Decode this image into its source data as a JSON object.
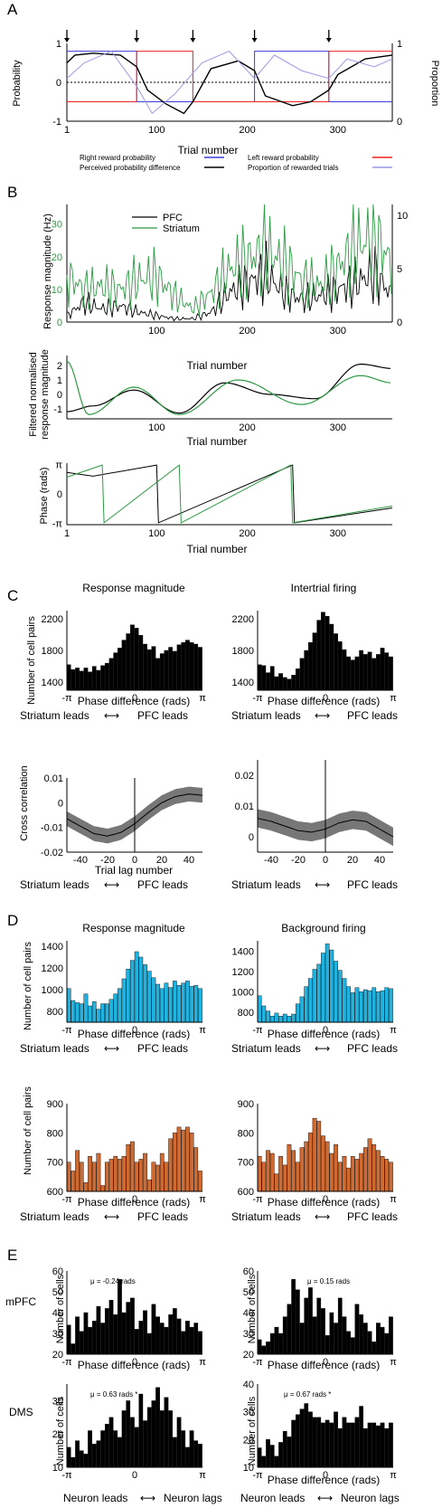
{
  "panels": {
    "A": {
      "letter": "A",
      "ylabel_left": "Probability",
      "ylabel_right": "Proportion",
      "xlabel": "Trial number",
      "xticks": [
        "1",
        "100",
        "200",
        "300"
      ],
      "yticks_left": [
        "-1",
        "0",
        "1"
      ],
      "yticks_right": [
        "0",
        "1"
      ],
      "legend": [
        {
          "label": "Right reward probability",
          "color": "#3b3bd6"
        },
        {
          "label": "Left reward probability",
          "color": "#ee2020"
        },
        {
          "label": "Perceived probability difference",
          "color": "#000000"
        },
        {
          "label": "Proportion of rewarded trials",
          "color": "#9a9ae6"
        }
      ],
      "arrow_trials": [
        1,
        78,
        140,
        208,
        290
      ]
    },
    "B": {
      "letter": "B",
      "top": {
        "ylabel": "Response magnitude (Hz)",
        "xlabel": "Trial number",
        "yticks_left": [
          "0",
          "10",
          "20",
          "30"
        ],
        "yticks_right": [
          "0",
          "5",
          "10"
        ],
        "xticks": [
          "100",
          "200",
          "300"
        ],
        "legend": [
          {
            "label": "PFC",
            "color": "#000000"
          },
          {
            "label": "Striatum",
            "color": "#2e9a44"
          }
        ]
      },
      "mid": {
        "ylabel1": "Filtered normalised",
        "ylabel2": "response magnitude",
        "xlabel": "Trial number",
        "yticks": [
          "-1",
          "0",
          "1",
          "2"
        ],
        "xticks": [
          "100",
          "200",
          "300"
        ]
      },
      "bottom": {
        "ylabel": "Phase (rads)",
        "xlabel": "Trial number",
        "yticks": [
          "-π",
          "0",
          "π"
        ],
        "xticks": [
          "1",
          "100",
          "200",
          "300"
        ]
      }
    },
    "C": {
      "letter": "C",
      "hist_left_title": "Response magnitude",
      "hist_right_title": "Intertrial firing",
      "hist_ylabel": "Number of cell pairs",
      "hist_xlabel": "Phase difference (rads)",
      "hist_yticks": [
        "1400",
        "1800",
        "2200"
      ],
      "phase_ticks": [
        "-π",
        "0",
        "π"
      ],
      "lead_left": "Striatum leads",
      "lead_right": "PFC leads",
      "arrow": "⟷",
      "xc_ylabel": "Cross correlation",
      "xc_xlabel": "Trial lag number",
      "xc_left_yticks": [
        "-0.02",
        "-0.01",
        "0",
        "0.01"
      ],
      "xc_right_yticks": [
        "0",
        "0.01",
        "0.02"
      ],
      "xc_xticks": [
        "-40",
        "-20",
        "0",
        "20",
        "40"
      ]
    },
    "D": {
      "letter": "D",
      "left_title": "Response magnitude",
      "right_title": "Background firing",
      "ylabel": "Number of cell pairs",
      "xlabel": "Phase difference (rads)",
      "top_left_yticks": [
        "800",
        "1000",
        "1200",
        "1400"
      ],
      "top_right_yticks": [
        "800",
        "1000",
        "1200",
        "1400"
      ],
      "bot_yticks": [
        "600",
        "700",
        "800",
        "900"
      ],
      "phase_ticks": [
        "-π",
        "0",
        "π"
      ],
      "lead_left": "Striatum leads",
      "lead_right": "PFC leads",
      "arrow": "⟷",
      "blue": "#21b3e0",
      "orange": "#cf6a32"
    },
    "E": {
      "letter": "E",
      "row1_label": "mPFC",
      "row2_label": "DMS",
      "ylabel": "Number of cells",
      "xlabel": "Phase difference (rads)",
      "phase_ticks": [
        "-π",
        "0",
        "π"
      ],
      "mpfc_left_yticks": [
        "20",
        "30",
        "40",
        "50",
        "60"
      ],
      "mpfc_right_yticks": [
        "20",
        "30",
        "40",
        "50",
        "60"
      ],
      "dms_left_yticks": [
        "10",
        "20",
        "30"
      ],
      "dms_right_yticks": [
        "10",
        "20",
        "30",
        "40"
      ],
      "annotations": [
        "μ = -0.24 rads",
        "μ = 0.15 rads",
        "μ = 0.63 rads *",
        "μ = 0.67 rads *"
      ],
      "lead_left": "Neuron leads",
      "lead_right": "Neuron lags",
      "arrow": "⟷"
    }
  },
  "chart_data": [
    {
      "type": "line",
      "panel": "A",
      "xlabel": "Trial number",
      "x_range": [
        1,
        360
      ],
      "series": [
        {
          "name": "Right reward probability",
          "x": [
            1,
            78,
            78,
            208,
            208,
            290,
            290,
            360
          ],
          "values": [
            0.9,
            0.9,
            0.25,
            0.25,
            0.9,
            0.9,
            0.25,
            0.25
          ]
        },
        {
          "name": "Left reward probability",
          "x": [
            1,
            78,
            78,
            140,
            140,
            290,
            290,
            360
          ],
          "values": [
            0.25,
            0.25,
            0.9,
            0.9,
            0.25,
            0.25,
            0.9,
            0.9
          ]
        },
        {
          "name": "Perceived probability difference",
          "x": [
            1,
            10,
            30,
            60,
            78,
            90,
            110,
            130,
            140,
            160,
            190,
            208,
            220,
            250,
            270,
            290,
            300,
            330,
            360
          ],
          "values": [
            0.5,
            0.7,
            0.75,
            0.7,
            0.4,
            -0.2,
            -0.55,
            -0.8,
            -0.5,
            0.35,
            0.55,
            0.3,
            -0.35,
            -0.6,
            -0.5,
            -0.2,
            0.2,
            0.6,
            0.7
          ]
        },
        {
          "name": "Proportion of rewarded trials",
          "x": [
            1,
            20,
            50,
            78,
            95,
            120,
            150,
            180,
            208,
            230,
            260,
            290,
            310,
            340,
            360
          ],
          "values": [
            0.55,
            0.75,
            0.9,
            0.45,
            0.1,
            0.35,
            0.75,
            0.9,
            0.55,
            0.85,
            0.65,
            0.55,
            0.8,
            0.7,
            0.8
          ]
        }
      ]
    },
    {
      "type": "line",
      "panel": "B-top",
      "ylabel": "Response magnitude (Hz)",
      "xlabel": "Trial number",
      "ylim": [
        0,
        36
      ],
      "series": [
        {
          "name": "PFC",
          "x": [
            1,
            20,
            40,
            60,
            80,
            100,
            120,
            140,
            160,
            180,
            200,
            220,
            240,
            260,
            280,
            300,
            320,
            340,
            360
          ],
          "values": [
            2,
            6,
            4,
            5,
            3,
            2,
            1,
            1,
            3,
            9,
            12,
            15,
            9,
            7,
            8,
            10,
            12,
            15,
            8
          ]
        },
        {
          "name": "Striatum",
          "x": [
            1,
            20,
            40,
            60,
            80,
            100,
            120,
            140,
            160,
            180,
            200,
            220,
            240,
            260,
            280,
            300,
            320,
            340,
            360
          ],
          "values": [
            14,
            10,
            11,
            10,
            13,
            14,
            8,
            4,
            9,
            16,
            19,
            22,
            18,
            13,
            11,
            17,
            23,
            26,
            18
          ]
        }
      ]
    },
    {
      "type": "line",
      "panel": "B-mid",
      "ylabel": "Filtered normalised response magnitude",
      "xlabel": "Trial number",
      "ylim": [
        -1.7,
        2.7
      ],
      "series": [
        {
          "name": "PFC",
          "x": [
            1,
            30,
            75,
            125,
            175,
            225,
            275,
            325,
            360
          ],
          "values": [
            -1.2,
            -0.8,
            0.3,
            -1.3,
            0.8,
            0.0,
            -0.3,
            2.1,
            1.8
          ]
        },
        {
          "name": "Striatum",
          "x": [
            1,
            25,
            75,
            125,
            190,
            260,
            325,
            360
          ],
          "values": [
            2.3,
            -1.4,
            0.5,
            -1.4,
            1.0,
            -0.7,
            1.3,
            0.8
          ]
        }
      ]
    },
    {
      "type": "line",
      "panel": "B-bottom",
      "ylabel": "Phase (rads)",
      "xlabel": "Trial number",
      "ylim": [
        -3.3,
        3.3
      ],
      "series": [
        {
          "name": "PFC",
          "x": [
            1,
            30,
            100,
            102,
            250,
            252,
            360
          ],
          "values": [
            2.3,
            1.9,
            3.1,
            -3.1,
            3.1,
            -3.1,
            -1.5
          ]
        },
        {
          "name": "Striatum",
          "x": [
            1,
            40,
            42,
            125,
            127,
            248,
            250,
            360
          ],
          "values": [
            1.8,
            3.1,
            -3.1,
            3.1,
            -3.1,
            3.1,
            -3.1,
            -1.3
          ]
        }
      ]
    },
    {
      "type": "bar",
      "panel": "C-left",
      "title": "Response magnitude",
      "ylabel": "Number of cell pairs",
      "xlabel": "Phase difference (rads)",
      "ylim": [
        1300,
        2300
      ],
      "values": [
        1620,
        1560,
        1580,
        1540,
        1580,
        1530,
        1600,
        1550,
        1610,
        1640,
        1700,
        1770,
        1830,
        1930,
        2010,
        2120,
        2080,
        1990,
        1880,
        1810,
        1850,
        1700,
        1760,
        1800,
        1840,
        1790,
        1870,
        1900,
        1930,
        1900,
        1880,
        1840
      ]
    },
    {
      "type": "bar",
      "panel": "C-right",
      "title": "Intertrial firing",
      "ylabel": "Number of cell pairs",
      "xlabel": "Phase difference (rads)",
      "ylim": [
        1300,
        2300
      ],
      "values": [
        1620,
        1610,
        1520,
        1600,
        1470,
        1510,
        1460,
        1440,
        1490,
        1570,
        1700,
        1800,
        1900,
        2020,
        2180,
        2280,
        2230,
        2130,
        2010,
        1910,
        1810,
        1720,
        1680,
        1720,
        1800,
        1750,
        1780,
        1700,
        1750,
        1830,
        1770,
        1720
      ]
    },
    {
      "type": "line",
      "panel": "C-xcorr-left",
      "ylabel": "Cross correlation",
      "xlabel": "Trial lag number",
      "ylim": [
        -0.02,
        0.01
      ],
      "x": [
        -50,
        -40,
        -30,
        -20,
        -10,
        0,
        10,
        20,
        30,
        40,
        50
      ],
      "series": [
        {
          "values": [
            -0.0065,
            -0.0095,
            -0.0125,
            -0.0135,
            -0.012,
            -0.0085,
            -0.004,
            0.0,
            0.0025,
            0.0035,
            0.003
          ]
        }
      ]
    },
    {
      "type": "line",
      "panel": "C-xcorr-right",
      "ylabel": "Cross correlation",
      "xlabel": "Trial lag number",
      "ylim": [
        -0.005,
        0.025
      ],
      "x": [
        -50,
        -40,
        -30,
        -20,
        -10,
        0,
        10,
        20,
        30,
        40,
        50
      ],
      "series": [
        {
          "values": [
            0.006,
            0.005,
            0.0035,
            0.002,
            0.0015,
            0.0025,
            0.0045,
            0.0055,
            0.005,
            0.0025,
            0.0
          ]
        }
      ]
    },
    {
      "type": "bar",
      "panel": "D-top-left",
      "title": "Response magnitude",
      "ylabel": "Number of cell pairs",
      "ylim": [
        700,
        1450
      ],
      "values": [
        1010,
        900,
        880,
        870,
        960,
        850,
        890,
        820,
        870,
        870,
        910,
        960,
        1010,
        1100,
        1190,
        1270,
        1350,
        1300,
        1230,
        1170,
        1110,
        1050,
        1010,
        1060,
        1020,
        1080,
        1040,
        1060,
        1080,
        1030,
        1040,
        1010
      ]
    },
    {
      "type": "bar",
      "panel": "D-top-right",
      "title": "Background firing",
      "ylabel": "Number of cell pairs",
      "ylim": [
        700,
        1500
      ],
      "values": [
        960,
        860,
        810,
        760,
        790,
        760,
        780,
        760,
        780,
        880,
        950,
        1050,
        1130,
        1220,
        1270,
        1380,
        1470,
        1410,
        1300,
        1210,
        1130,
        1050,
        990,
        1040,
        1000,
        1020,
        1010,
        1040,
        1000,
        1010,
        1040,
        1030
      ]
    },
    {
      "type": "bar",
      "panel": "D-bottom-left",
      "ylabel": "Number of cell pairs",
      "ylim": [
        600,
        900
      ],
      "values": [
        700,
        670,
        740,
        700,
        630,
        720,
        700,
        730,
        620,
        700,
        710,
        720,
        710,
        720,
        760,
        770,
        700,
        710,
        730,
        640,
        700,
        690,
        730,
        700,
        780,
        800,
        820,
        810,
        820,
        800,
        750,
        670
      ]
    },
    {
      "type": "bar",
      "panel": "D-bottom-right",
      "ylabel": "Number of cell pairs",
      "ylim": [
        600,
        900
      ],
      "values": [
        720,
        700,
        740,
        730,
        660,
        720,
        690,
        760,
        740,
        700,
        750,
        770,
        800,
        850,
        840,
        790,
        770,
        730,
        760,
        700,
        720,
        680,
        720,
        710,
        730,
        750,
        780,
        760,
        740,
        720,
        710,
        700
      ]
    },
    {
      "type": "bar",
      "panel": "E-mPFC-left",
      "ylabel": "Number of cells",
      "ylim": [
        20,
        60
      ],
      "values": [
        34,
        25,
        38,
        31,
        40,
        33,
        36,
        43,
        35,
        42,
        46,
        39,
        56,
        40,
        45,
        47,
        32,
        36,
        41,
        30,
        44,
        38,
        35,
        33,
        39,
        42,
        37,
        31,
        36,
        33,
        35,
        31
      ]
    },
    {
      "type": "bar",
      "panel": "E-mPFC-right",
      "ylabel": "Number of cells",
      "ylim": [
        20,
        60
      ],
      "values": [
        27,
        24,
        26,
        30,
        33,
        30,
        38,
        44,
        56,
        51,
        35,
        47,
        52,
        38,
        47,
        42,
        29,
        40,
        35,
        47,
        38,
        31,
        28,
        44,
        39,
        35,
        31,
        26,
        35,
        33,
        30,
        38
      ]
    },
    {
      "type": "bar",
      "panel": "E-DMS-left",
      "ylabel": "Number of cells",
      "ylim": [
        10,
        35
      ],
      "values": [
        16,
        13,
        18,
        15,
        14,
        21,
        17,
        18,
        21,
        23,
        25,
        21,
        19,
        27,
        30,
        25,
        22,
        32,
        24,
        28,
        30,
        34,
        27,
        31,
        27,
        19,
        25,
        21,
        16,
        21,
        18,
        17
      ]
    },
    {
      "type": "bar",
      "panel": "E-DMS-right",
      "ylabel": "Number of cells",
      "ylim": [
        10,
        40
      ],
      "values": [
        17,
        14,
        20,
        18,
        14,
        19,
        23,
        21,
        27,
        29,
        31,
        33,
        30,
        28,
        28,
        26,
        27,
        26,
        30,
        24,
        28,
        26,
        26,
        28,
        32,
        24,
        26,
        26,
        25,
        26,
        24,
        26
      ]
    }
  ]
}
